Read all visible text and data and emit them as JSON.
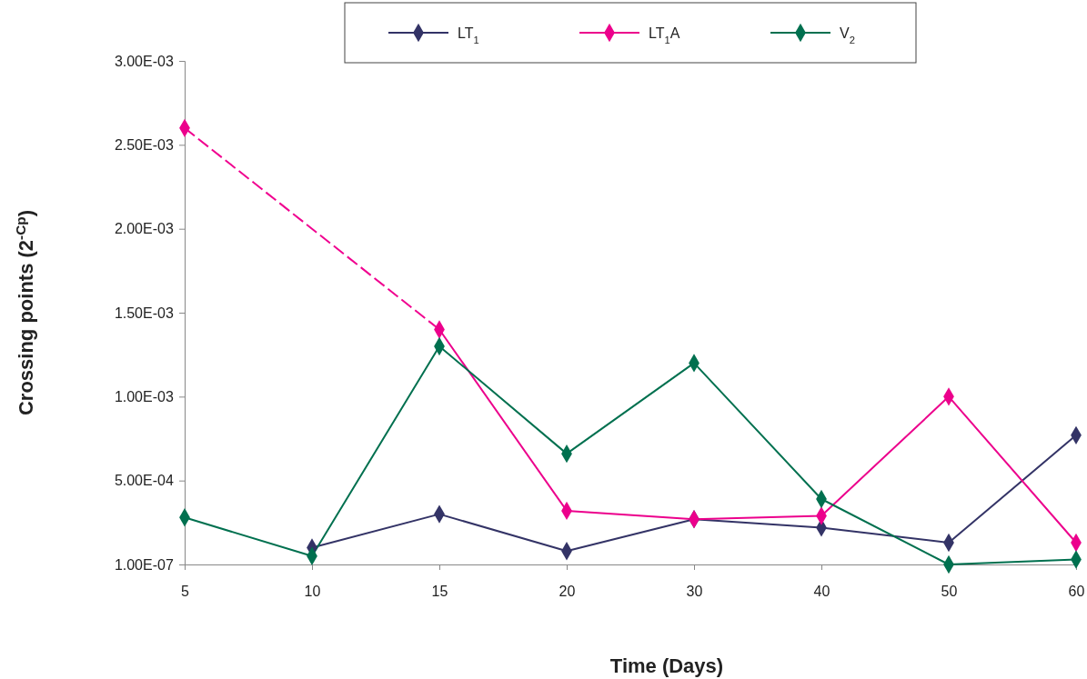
{
  "chart_data": {
    "type": "line",
    "xlabel": "Time (Days)",
    "ylabel": "Crossing points (2$^{-Cp}$)",
    "categories": [
      "5",
      "10",
      "15",
      "20",
      "30",
      "40",
      "50",
      "60"
    ],
    "series": [
      {
        "name": "LT$_{1}$",
        "color": "#333366",
        "values": [
          null,
          0.0001,
          0.0003,
          8e-05,
          0.00027,
          0.00022,
          0.00013,
          0.00077
        ]
      },
      {
        "name": "LT$_{1}$A",
        "color": "#ec008c",
        "values": [
          0.0026,
          null,
          0.0014,
          0.00032,
          0.00027,
          0.00029,
          0.001,
          0.00013
        ]
      },
      {
        "name": "V$_{2}$",
        "color": "#00704f",
        "values": [
          0.00028,
          5e-05,
          0.0013,
          0.00066,
          0.0012,
          0.00039,
          1e-07,
          3e-05
        ]
      },
      {
        "color": "#f0008f",
        "line_style": "dashed",
        "marker": "none",
        "values": [
          0.0026,
          0.002,
          0.0014,
          null,
          null,
          null,
          null,
          null
        ]
      }
    ],
    "ylim": [
      1e-07,
      0.003
    ],
    "yticks": [
      {
        "value": 1e-07,
        "label": "1.00E-07"
      },
      {
        "value": 0.0005,
        "label": "5.00E-04"
      },
      {
        "value": 0.001,
        "label": "1.00E-03"
      },
      {
        "value": 0.0015,
        "label": "1.50E-03"
      },
      {
        "value": 0.002,
        "label": "2.00E-03"
      },
      {
        "value": 0.0025,
        "label": "2.50E-03"
      },
      {
        "value": 0.003,
        "label": "3.00E-03"
      }
    ],
    "grid": false,
    "legend": "top",
    "marker": "diamond",
    "line_style": "solid"
  }
}
